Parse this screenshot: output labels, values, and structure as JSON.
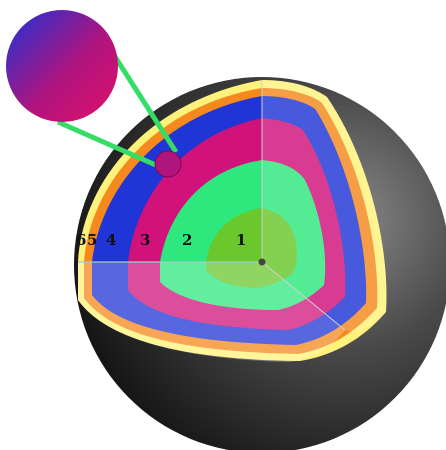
{
  "diagram": {
    "layer_labels": [
      {
        "id": "1",
        "text": "1"
      },
      {
        "id": "2",
        "text": "2"
      },
      {
        "id": "3",
        "text": "3"
      },
      {
        "id": "4",
        "text": "4"
      },
      {
        "id": "5",
        "text": "5"
      },
      {
        "id": "6",
        "text": "6"
      }
    ],
    "colors": {
      "sphere_dark": "#2a2a2a",
      "sphere_light": "#7a7a7a",
      "layer_6": "#fff27a",
      "layer_5": "#f5891e",
      "layer_4": "#1f35d6",
      "layer_3": "#d0127a",
      "layer_2": "#2ee87e",
      "layer_1": "#6ac72c",
      "callout_line": "#33dd66"
    }
  }
}
